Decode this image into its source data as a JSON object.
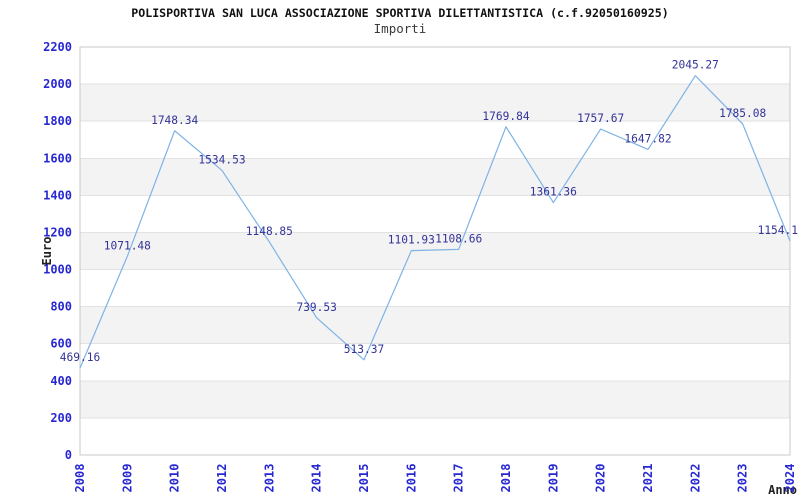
{
  "title": "POLISPORTIVA SAN LUCA ASSOCIAZIONE SPORTIVA DILETTANTISTICA (c.f.92050160925)",
  "subtitle": "Importi",
  "chart_data": {
    "type": "line",
    "title": "Importi",
    "xlabel": "Anno",
    "ylabel": "Euro",
    "x": [
      "2008",
      "2009",
      "2010",
      "2012",
      "2013",
      "2014",
      "2015",
      "2016",
      "2017",
      "2018",
      "2019",
      "2020",
      "2021",
      "2022",
      "2023",
      "2024"
    ],
    "values": [
      469.16,
      1071.48,
      1748.34,
      1534.53,
      1148.85,
      739.53,
      513.37,
      1101.93,
      1108.66,
      1769.84,
      1361.36,
      1757.67,
      1647.82,
      2045.27,
      1785.08,
      1154.1
    ],
    "point_labels": [
      "469.16",
      "1071.48",
      "1748.34",
      "1534.53",
      "1148.85",
      "739.53",
      "513.37",
      "1101.93",
      "1108.66",
      "1769.84",
      "1361.36",
      "1757.67",
      "1647.82",
      "2045.27",
      "1785.08",
      "1154.1"
    ],
    "ylim": [
      0,
      2200
    ],
    "yticks": [
      0,
      200,
      400,
      600,
      800,
      1000,
      1200,
      1400,
      1600,
      1800,
      2000,
      2200
    ],
    "grid": "horizontal-bands",
    "legend": "none",
    "colors": {
      "line": "#7fb3e6",
      "tick_label": "#2828d2",
      "point_label": "#333399",
      "band": "#f3f3f3",
      "grid_line": "#e2e2e2",
      "plot_border": "#c8c8c8",
      "title": "#111111",
      "axis_title": "#222222"
    }
  }
}
